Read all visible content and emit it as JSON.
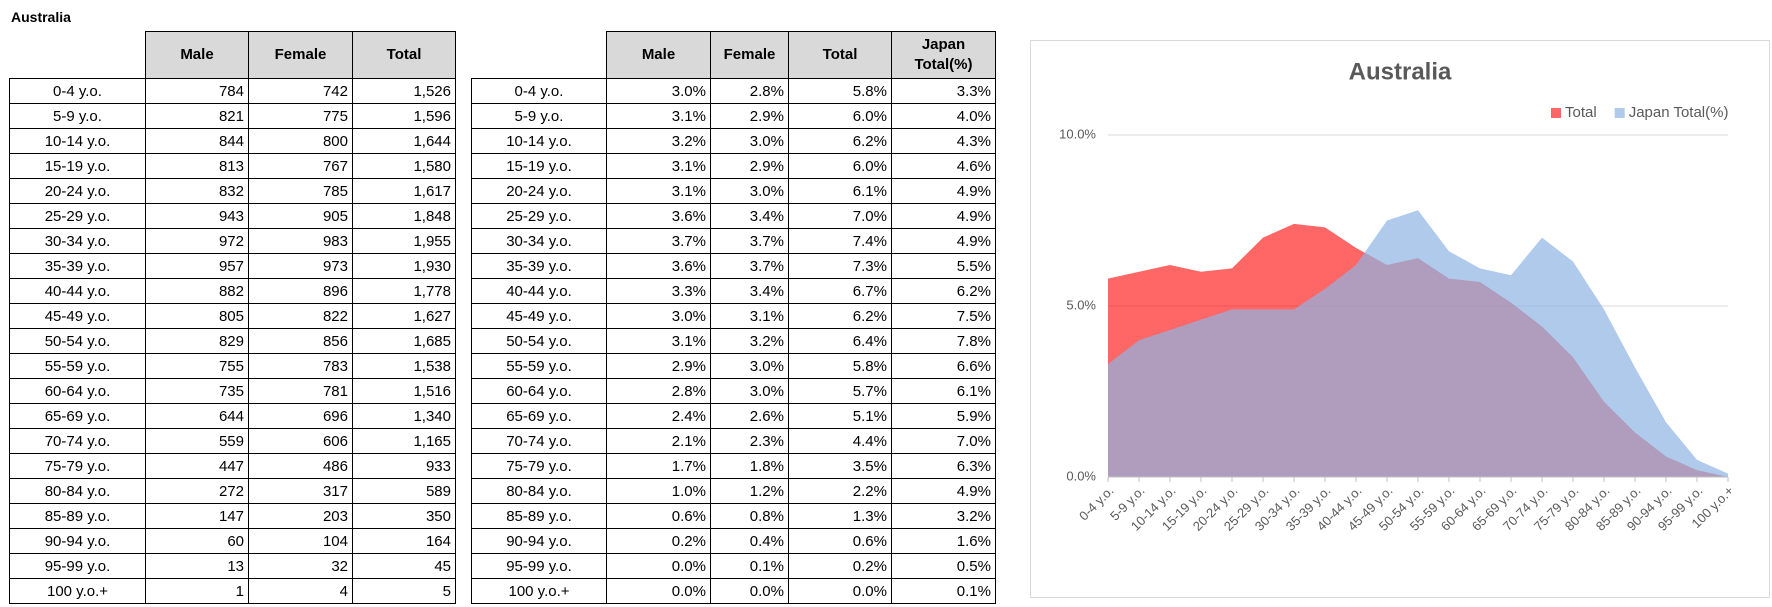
{
  "header": {
    "title": "Australia"
  },
  "counts_table": {
    "columns": [
      "Male",
      "Female",
      "Total"
    ],
    "rows": [
      [
        "0-4 y.o.",
        "784",
        "742",
        "1,526"
      ],
      [
        "5-9 y.o.",
        "821",
        "775",
        "1,596"
      ],
      [
        "10-14 y.o.",
        "844",
        "800",
        "1,644"
      ],
      [
        "15-19 y.o.",
        "813",
        "767",
        "1,580"
      ],
      [
        "20-24 y.o.",
        "832",
        "785",
        "1,617"
      ],
      [
        "25-29 y.o.",
        "943",
        "905",
        "1,848"
      ],
      [
        "30-34 y.o.",
        "972",
        "983",
        "1,955"
      ],
      [
        "35-39 y.o.",
        "957",
        "973",
        "1,930"
      ],
      [
        "40-44 y.o.",
        "882",
        "896",
        "1,778"
      ],
      [
        "45-49 y.o.",
        "805",
        "822",
        "1,627"
      ],
      [
        "50-54 y.o.",
        "829",
        "856",
        "1,685"
      ],
      [
        "55-59 y.o.",
        "755",
        "783",
        "1,538"
      ],
      [
        "60-64 y.o.",
        "735",
        "781",
        "1,516"
      ],
      [
        "65-69 y.o.",
        "644",
        "696",
        "1,340"
      ],
      [
        "70-74 y.o.",
        "559",
        "606",
        "1,165"
      ],
      [
        "75-79 y.o.",
        "447",
        "486",
        "933"
      ],
      [
        "80-84 y.o.",
        "272",
        "317",
        "589"
      ],
      [
        "85-89 y.o.",
        "147",
        "203",
        "350"
      ],
      [
        "90-94 y.o.",
        "60",
        "104",
        "164"
      ],
      [
        "95-99 y.o.",
        "13",
        "32",
        "45"
      ],
      [
        "100 y.o.+",
        "1",
        "4",
        "5"
      ]
    ]
  },
  "share_table": {
    "columns": [
      "Male",
      "Female",
      "Total",
      "Japan Total(%)"
    ],
    "rows": [
      [
        "0-4 y.o.",
        "3.0%",
        "2.8%",
        "5.8%",
        "3.3%"
      ],
      [
        "5-9 y.o.",
        "3.1%",
        "2.9%",
        "6.0%",
        "4.0%"
      ],
      [
        "10-14 y.o.",
        "3.2%",
        "3.0%",
        "6.2%",
        "4.3%"
      ],
      [
        "15-19 y.o.",
        "3.1%",
        "2.9%",
        "6.0%",
        "4.6%"
      ],
      [
        "20-24 y.o.",
        "3.1%",
        "3.0%",
        "6.1%",
        "4.9%"
      ],
      [
        "25-29 y.o.",
        "3.6%",
        "3.4%",
        "7.0%",
        "4.9%"
      ],
      [
        "30-34 y.o.",
        "3.7%",
        "3.7%",
        "7.4%",
        "4.9%"
      ],
      [
        "35-39 y.o.",
        "3.6%",
        "3.7%",
        "7.3%",
        "5.5%"
      ],
      [
        "40-44 y.o.",
        "3.3%",
        "3.4%",
        "6.7%",
        "6.2%"
      ],
      [
        "45-49 y.o.",
        "3.0%",
        "3.1%",
        "6.2%",
        "7.5%"
      ],
      [
        "50-54 y.o.",
        "3.1%",
        "3.2%",
        "6.4%",
        "7.8%"
      ],
      [
        "55-59 y.o.",
        "2.9%",
        "3.0%",
        "5.8%",
        "6.6%"
      ],
      [
        "60-64 y.o.",
        "2.8%",
        "3.0%",
        "5.7%",
        "6.1%"
      ],
      [
        "65-69 y.o.",
        "2.4%",
        "2.6%",
        "5.1%",
        "5.9%"
      ],
      [
        "70-74 y.o.",
        "2.1%",
        "2.3%",
        "4.4%",
        "7.0%"
      ],
      [
        "75-79 y.o.",
        "1.7%",
        "1.8%",
        "3.5%",
        "6.3%"
      ],
      [
        "80-84 y.o.",
        "1.0%",
        "1.2%",
        "2.2%",
        "4.9%"
      ],
      [
        "85-89 y.o.",
        "0.6%",
        "0.8%",
        "1.3%",
        "3.2%"
      ],
      [
        "90-94 y.o.",
        "0.2%",
        "0.4%",
        "0.6%",
        "1.6%"
      ],
      [
        "95-99 y.o.",
        "0.0%",
        "0.1%",
        "0.2%",
        "0.5%"
      ],
      [
        "100 y.o.+",
        "0.0%",
        "0.0%",
        "0.0%",
        "0.1%"
      ]
    ]
  },
  "chart_data": {
    "type": "area",
    "title": "Australia",
    "categories": [
      "0-4 y.o.",
      "5-9 y.o.",
      "10-14 y.o.",
      "15-19 y.o.",
      "20-24 y.o.",
      "25-29 y.o.",
      "30-34 y.o.",
      "35-39 y.o.",
      "40-44 y.o.",
      "45-49 y.o.",
      "50-54 y.o.",
      "55-59 y.o.",
      "60-64 y.o.",
      "65-69 y.o.",
      "70-74 y.o.",
      "75-79 y.o.",
      "80-84 y.o.",
      "85-89 y.o.",
      "90-94 y.o.",
      "95-99 y.o.",
      "100 y.o.+"
    ],
    "series": [
      {
        "name": "Total",
        "color": "#ff0000",
        "values": [
          5.8,
          6.0,
          6.2,
          6.0,
          6.1,
          7.0,
          7.4,
          7.3,
          6.7,
          6.2,
          6.4,
          5.8,
          5.7,
          5.1,
          4.4,
          3.5,
          2.2,
          1.3,
          0.6,
          0.2,
          0.0
        ]
      },
      {
        "name": "Japan Total(%)",
        "color": "#8eb4e3",
        "values": [
          3.3,
          4.0,
          4.3,
          4.6,
          4.9,
          4.9,
          4.9,
          5.5,
          6.2,
          7.5,
          7.8,
          6.6,
          6.1,
          5.9,
          7.0,
          6.3,
          4.9,
          3.2,
          1.6,
          0.5,
          0.1
        ]
      }
    ],
    "ylim": [
      0,
      10
    ],
    "yticks": [
      {
        "value": 0,
        "label": "0.0%"
      },
      {
        "value": 5,
        "label": "5.0%"
      },
      {
        "value": 10,
        "label": "10.0%"
      }
    ],
    "grid": true,
    "legend": "top-right"
  }
}
